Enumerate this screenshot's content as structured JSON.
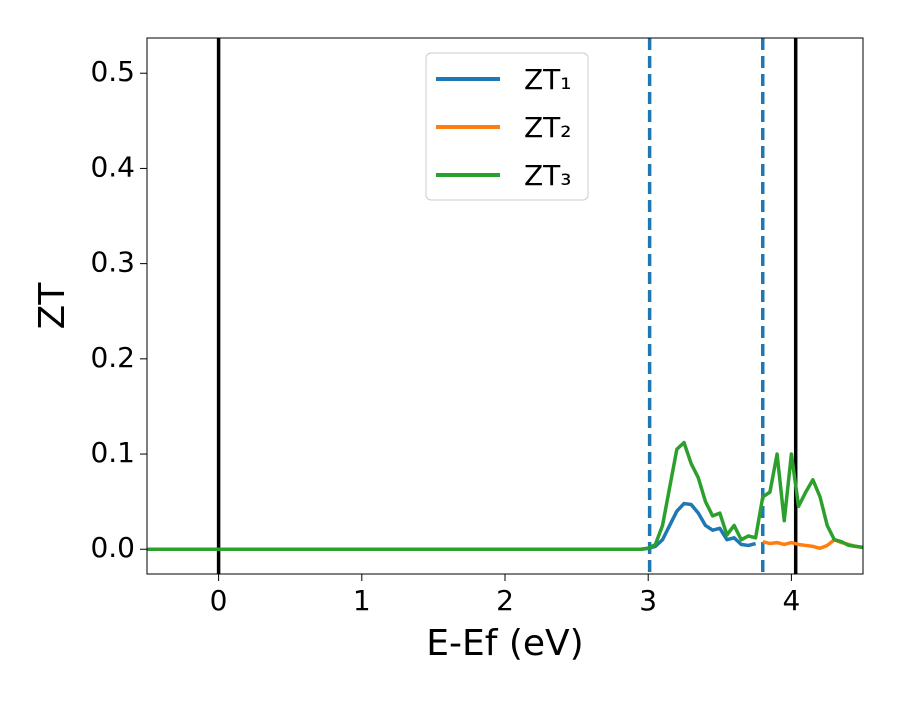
{
  "chart_data": {
    "type": "line",
    "xlabel": "E-Ef (eV)",
    "ylabel": "ZT",
    "x": [
      -0.5,
      0,
      0.5,
      1,
      1.5,
      2,
      2.5,
      2.95,
      3.0,
      3.05,
      3.1,
      3.15,
      3.2,
      3.25,
      3.3,
      3.35,
      3.4,
      3.45,
      3.5,
      3.55,
      3.6,
      3.65,
      3.7,
      3.75,
      3.8,
      3.85,
      3.9,
      3.95,
      4.0,
      4.05,
      4.1,
      4.15,
      4.2,
      4.25,
      4.3,
      4.35,
      4.4,
      4.45,
      4.5
    ],
    "series": [
      {
        "name": "ZT₁",
        "color": "#1f77b4",
        "values": [
          0,
          0,
          0,
          0,
          0,
          0,
          0,
          0,
          0.001,
          0.003,
          0.01,
          0.025,
          0.04,
          0.048,
          0.047,
          0.038,
          0.025,
          0.02,
          0.022,
          0.01,
          0.012,
          0.005,
          0.004,
          0.006,
          null,
          null,
          null,
          null,
          null,
          null,
          null,
          null,
          null,
          null,
          null,
          null,
          null,
          null,
          null
        ]
      },
      {
        "name": "ZT₂",
        "color": "#ff7f0e",
        "values": [
          null,
          null,
          null,
          null,
          null,
          null,
          null,
          null,
          null,
          null,
          null,
          null,
          null,
          null,
          null,
          null,
          null,
          null,
          null,
          null,
          null,
          null,
          null,
          null,
          0.008,
          0.006,
          0.007,
          0.005,
          0.007,
          0.005,
          0.004,
          0.003,
          0.001,
          0.004,
          0.01,
          0.007,
          0.005,
          0.003,
          0.002
        ]
      },
      {
        "name": "ZT₃",
        "color": "#2ca02c",
        "values": [
          0,
          0,
          0,
          0,
          0,
          0,
          0,
          0,
          0.001,
          0.005,
          0.025,
          0.065,
          0.105,
          0.112,
          0.09,
          0.075,
          0.05,
          0.035,
          0.038,
          0.015,
          0.025,
          0.01,
          0.014,
          0.012,
          0.055,
          0.06,
          0.1,
          0.03,
          0.1,
          0.045,
          0.06,
          0.073,
          0.055,
          0.025,
          0.01,
          0.008,
          0.004,
          0.003,
          0.002
        ]
      }
    ],
    "vlines": [
      {
        "x": 0,
        "color": "#000000",
        "style": "solid"
      },
      {
        "x": 4.03,
        "color": "#000000",
        "style": "solid"
      },
      {
        "x": 3.01,
        "color": "#1f77b4",
        "style": "dashed"
      },
      {
        "x": 3.8,
        "color": "#1f77b4",
        "style": "dashed"
      }
    ],
    "xlim": [
      -0.5,
      4.5
    ],
    "ylim": [
      -0.026,
      0.537
    ],
    "xticks": [
      0,
      1,
      2,
      3,
      4
    ],
    "yticks": [
      {
        "value": 0,
        "label": "0.0"
      },
      0.1,
      0.2,
      0.3,
      0.4,
      0.5
    ],
    "legend": "upper center",
    "grid": false
  }
}
